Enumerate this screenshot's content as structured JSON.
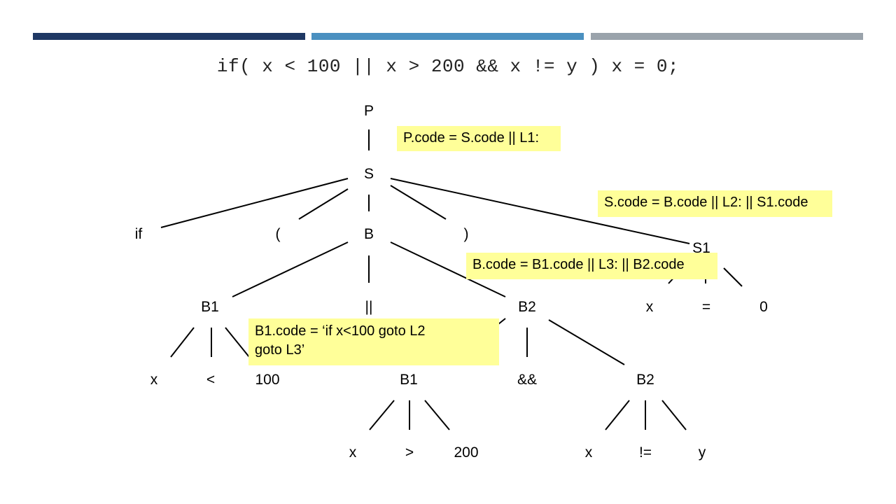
{
  "slide": {
    "accent_colors": [
      "#1f3864",
      "#4a90c0",
      "#9aa3ab"
    ],
    "code_statement": "if( x < 100 || x > 200 && x != y ) x = 0;"
  },
  "tree": {
    "nodes": {
      "P": "P",
      "S": "S",
      "if": "if",
      "lparen": "(",
      "B": "B",
      "rparen": ")",
      "S1": "S1",
      "B1": "B1",
      "or": "||",
      "B2": "B2",
      "x1": "x",
      "eq": "=",
      "zero": "0",
      "x2": "x",
      "lt": "<",
      "n100": "100",
      "B1b": "B1",
      "and": "&&",
      "B2b": "B2",
      "x3": "x",
      "gt": ">",
      "n200": "200",
      "x4": "x",
      "neq": "!=",
      "y": "y"
    }
  },
  "notes": {
    "p_code": "P.code = S.code || L1:",
    "s_code": "S.code = B.code || L2: || S1.code",
    "b_code": "B.code = B1.code || L3: || B2.code",
    "b1_code_line1": "B1.code = ‘if x<100 goto L2",
    "b1_code_line2": "goto L3’"
  }
}
